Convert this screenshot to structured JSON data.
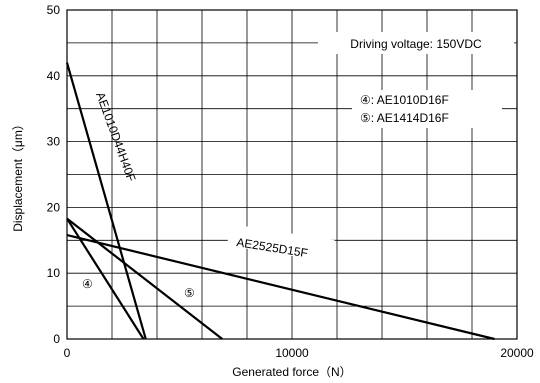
{
  "chart_data": {
    "type": "line",
    "xlabel": "Generated force（N）",
    "ylabel": "Displacement（μm）",
    "xlim": [
      0,
      20000
    ],
    "ylim": [
      0,
      50
    ],
    "x_major_ticks": [
      0,
      10000,
      20000
    ],
    "y_major_ticks": [
      0,
      10,
      20,
      30,
      40,
      50
    ],
    "x_grid_step": 2000,
    "y_grid_step": 5,
    "grid": true,
    "note_title": "Driving voltage: 150VDC",
    "legend": [
      {
        "marker": "④",
        "text": "④: AE1010D16F"
      },
      {
        "marker": "⑤",
        "text": "⑤: AE1414D16F"
      }
    ],
    "series": [
      {
        "name": "AE1010D44H40F",
        "label": "AE1010D44H40F",
        "x": [
          0,
          3500
        ],
        "y": [
          42,
          0
        ]
      },
      {
        "name": "AE2525D15F",
        "label": "AE2525D15F",
        "x": [
          0,
          19000
        ],
        "y": [
          15.8,
          0
        ]
      },
      {
        "name": "④",
        "label": "④",
        "x": [
          0,
          3400
        ],
        "y": [
          18.3,
          0
        ]
      },
      {
        "name": "⑤",
        "label": "⑤",
        "x": [
          0,
          6900
        ],
        "y": [
          18.3,
          0
        ]
      }
    ]
  }
}
